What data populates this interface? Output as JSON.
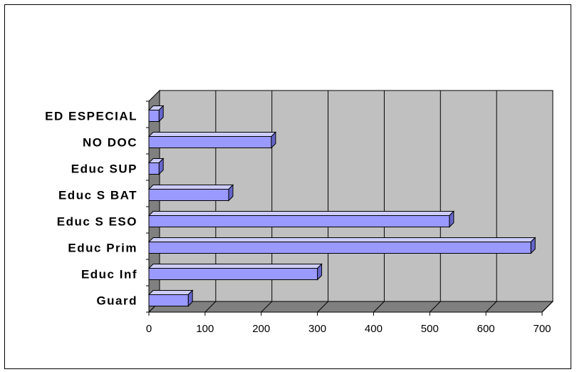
{
  "chart_data": {
    "type": "bar",
    "orientation": "horizontal",
    "title": "",
    "xlabel": "",
    "ylabel": "",
    "categories": [
      "Guard",
      "Educ Inf",
      "Educ Prim",
      "Educ S ESO",
      "Educ S BAT",
      "Educ SUP",
      "NO DOC",
      "ED ESPECIAL"
    ],
    "values": [
      70,
      300,
      680,
      535,
      142,
      18,
      218,
      18
    ],
    "xlim": [
      0,
      700
    ],
    "x_ticks": [
      "0",
      "100",
      "200",
      "300",
      "400",
      "500",
      "600",
      "700"
    ],
    "grid": "vertical",
    "legend": "none",
    "colors": {
      "bar_front": "#9999ff",
      "bar_top": "#ccccff",
      "bar_side": "#6666cc",
      "plot_back": "#c0c0c0",
      "plot_floor": "#808080",
      "plot_wall": "#808080"
    }
  }
}
